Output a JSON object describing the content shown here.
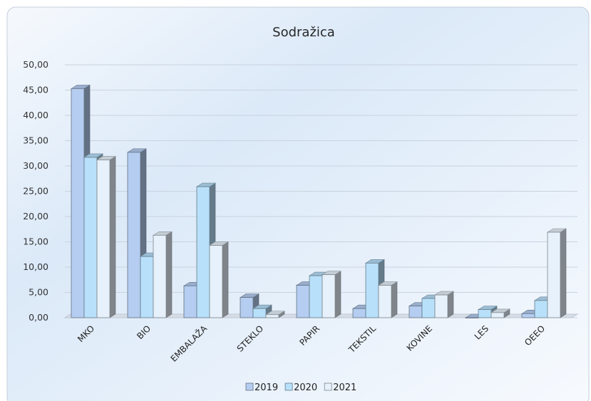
{
  "chart_data": {
    "type": "bar",
    "title": "Sodražica",
    "categories": [
      "MKO",
      "BIO",
      "EMBALAŽA",
      "STEKLO",
      "PAPIR",
      "TEKSTIL",
      "KOVINE",
      "LES",
      "OEEO"
    ],
    "series": [
      {
        "name": "2019",
        "values": [
          45.3,
          32.7,
          6.3,
          4.0,
          6.4,
          1.8,
          2.3,
          0.0,
          0.8
        ],
        "color": "#b4cdf0"
      },
      {
        "name": "2020",
        "values": [
          31.7,
          12.1,
          25.9,
          1.8,
          8.3,
          10.8,
          3.8,
          1.6,
          3.4
        ],
        "color": "#b8e0fa"
      },
      {
        "name": "2021",
        "values": [
          31.2,
          16.3,
          14.3,
          0.6,
          8.5,
          6.4,
          4.5,
          1.0,
          16.9
        ],
        "color": "#e6f1fb"
      }
    ],
    "ylim": [
      0,
      50
    ],
    "yticks": [
      "0,00",
      "5,00",
      "10,00",
      "15,00",
      "20,00",
      "25,00",
      "30,00",
      "35,00",
      "40,00",
      "45,00",
      "50,00"
    ],
    "grid": true,
    "legend": "bottom",
    "xlabel": "",
    "ylabel": ""
  }
}
